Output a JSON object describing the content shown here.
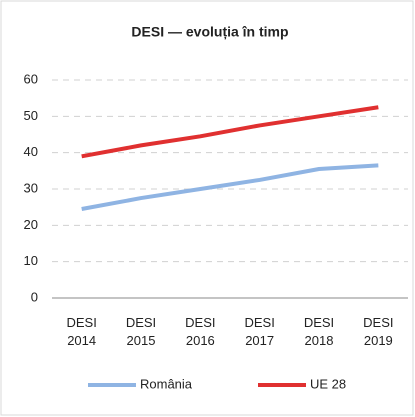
{
  "chart_data": {
    "type": "line",
    "title": "DESI — evoluția în timp",
    "categories": [
      "DESI 2014",
      "DESI 2015",
      "DESI 2016",
      "DESI 2017",
      "DESI 2018",
      "DESI 2019"
    ],
    "series": [
      {
        "name": "România",
        "color": "#8fb4e3",
        "values": [
          24.5,
          27.5,
          30,
          32.5,
          35.5,
          36.5
        ]
      },
      {
        "name": "UE 28",
        "color": "#e03030",
        "values": [
          39,
          42,
          44.5,
          47.5,
          50,
          52.5
        ]
      }
    ],
    "ylim": [
      0,
      60
    ],
    "yticks": [
      0,
      10,
      20,
      30,
      40,
      50,
      60
    ],
    "grid": true,
    "legend": "bottom"
  }
}
